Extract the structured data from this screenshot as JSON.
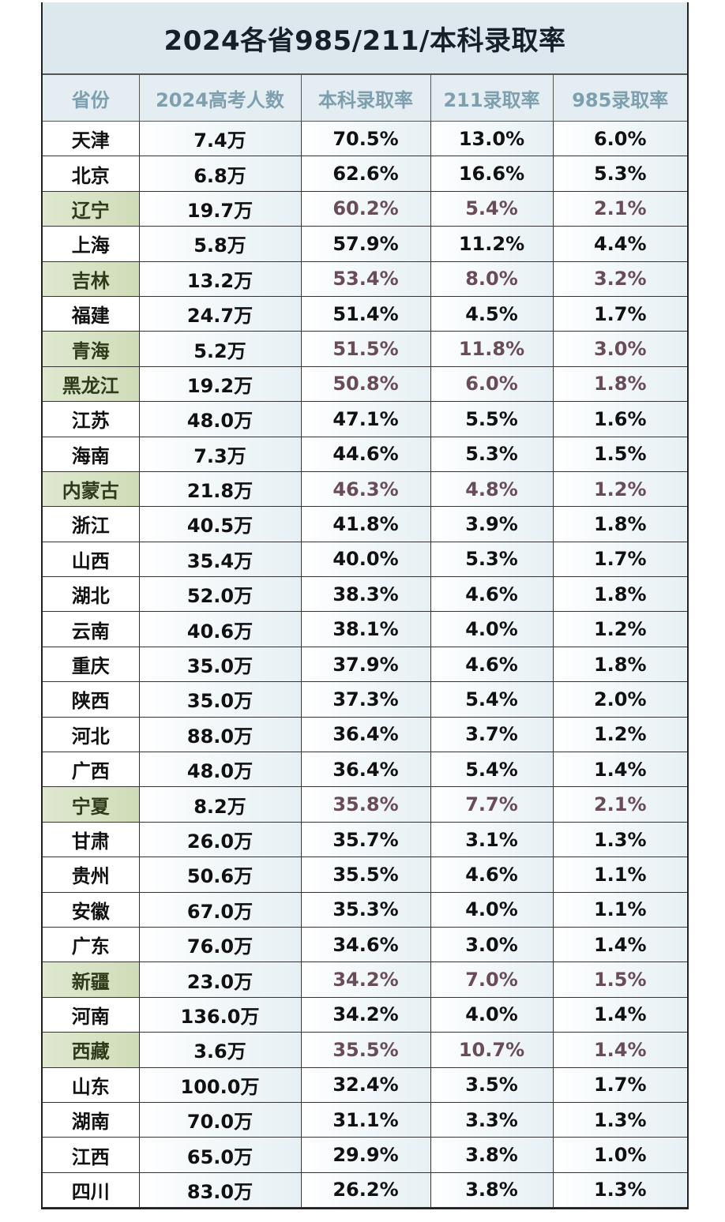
{
  "title": "2024各省985/211/本科录取率",
  "table": {
    "headers": [
      "省份",
      "2024高考人数",
      "本科录取率",
      "211录取率",
      "985录取率"
    ],
    "rows": [
      {
        "province": "天津",
        "examinees": "7.4万",
        "undergrad": "70.5%",
        "r211": "13.0%",
        "r985": "6.0%",
        "highlight": false
      },
      {
        "province": "北京",
        "examinees": "6.8万",
        "undergrad": "62.6%",
        "r211": "16.6%",
        "r985": "5.3%",
        "highlight": false
      },
      {
        "province": "辽宁",
        "examinees": "19.7万",
        "undergrad": "60.2%",
        "r211": "5.4%",
        "r985": "2.1%",
        "highlight": true
      },
      {
        "province": "上海",
        "examinees": "5.8万",
        "undergrad": "57.9%",
        "r211": "11.2%",
        "r985": "4.4%",
        "highlight": false
      },
      {
        "province": "吉林",
        "examinees": "13.2万",
        "undergrad": "53.4%",
        "r211": "8.0%",
        "r985": "3.2%",
        "highlight": true
      },
      {
        "province": "福建",
        "examinees": "24.7万",
        "undergrad": "51.4%",
        "r211": "4.5%",
        "r985": "1.7%",
        "highlight": false
      },
      {
        "province": "青海",
        "examinees": "5.2万",
        "undergrad": "51.5%",
        "r211": "11.8%",
        "r985": "3.0%",
        "highlight": true
      },
      {
        "province": "黑龙江",
        "examinees": "19.2万",
        "undergrad": "50.8%",
        "r211": "6.0%",
        "r985": "1.8%",
        "highlight": true
      },
      {
        "province": "江苏",
        "examinees": "48.0万",
        "undergrad": "47.1%",
        "r211": "5.5%",
        "r985": "1.6%",
        "highlight": false
      },
      {
        "province": "海南",
        "examinees": "7.3万",
        "undergrad": "44.6%",
        "r211": "5.3%",
        "r985": "1.5%",
        "highlight": false
      },
      {
        "province": "内蒙古",
        "examinees": "21.8万",
        "undergrad": "46.3%",
        "r211": "4.8%",
        "r985": "1.2%",
        "highlight": true
      },
      {
        "province": "浙江",
        "examinees": "40.5万",
        "undergrad": "41.8%",
        "r211": "3.9%",
        "r985": "1.8%",
        "highlight": false
      },
      {
        "province": "山西",
        "examinees": "35.4万",
        "undergrad": "40.0%",
        "r211": "5.3%",
        "r985": "1.7%",
        "highlight": false
      },
      {
        "province": "湖北",
        "examinees": "52.0万",
        "undergrad": "38.3%",
        "r211": "4.6%",
        "r985": "1.8%",
        "highlight": false
      },
      {
        "province": "云南",
        "examinees": "40.6万",
        "undergrad": "38.1%",
        "r211": "4.0%",
        "r985": "1.2%",
        "highlight": false
      },
      {
        "province": "重庆",
        "examinees": "35.0万",
        "undergrad": "37.9%",
        "r211": "4.6%",
        "r985": "1.8%",
        "highlight": false
      },
      {
        "province": "陕西",
        "examinees": "35.0万",
        "undergrad": "37.3%",
        "r211": "5.4%",
        "r985": "2.0%",
        "highlight": false
      },
      {
        "province": "河北",
        "examinees": "88.0万",
        "undergrad": "36.4%",
        "r211": "3.7%",
        "r985": "1.2%",
        "highlight": false
      },
      {
        "province": "广西",
        "examinees": "48.0万",
        "undergrad": "36.4%",
        "r211": "5.4%",
        "r985": "1.4%",
        "highlight": false
      },
      {
        "province": "宁夏",
        "examinees": "8.2万",
        "undergrad": "35.8%",
        "r211": "7.7%",
        "r985": "2.1%",
        "highlight": true
      },
      {
        "province": "甘肃",
        "examinees": "26.0万",
        "undergrad": "35.7%",
        "r211": "3.1%",
        "r985": "1.3%",
        "highlight": false
      },
      {
        "province": "贵州",
        "examinees": "50.6万",
        "undergrad": "35.5%",
        "r211": "4.6%",
        "r985": "1.1%",
        "highlight": false
      },
      {
        "province": "安徽",
        "examinees": "67.0万",
        "undergrad": "35.3%",
        "r211": "4.0%",
        "r985": "1.1%",
        "highlight": false
      },
      {
        "province": "广东",
        "examinees": "76.0万",
        "undergrad": "34.6%",
        "r211": "3.0%",
        "r985": "1.4%",
        "highlight": false
      },
      {
        "province": "新疆",
        "examinees": "23.0万",
        "undergrad": "34.2%",
        "r211": "7.0%",
        "r985": "1.5%",
        "highlight": true
      },
      {
        "province": "河南",
        "examinees": "136.0万",
        "undergrad": "34.2%",
        "r211": "4.0%",
        "r985": "1.4%",
        "highlight": false
      },
      {
        "province": "西藏",
        "examinees": "3.6万",
        "undergrad": "35.5%",
        "r211": "10.7%",
        "r985": "1.4%",
        "highlight": true
      },
      {
        "province": "山东",
        "examinees": "100.0万",
        "undergrad": "32.4%",
        "r211": "3.5%",
        "r985": "1.7%",
        "highlight": false
      },
      {
        "province": "湖南",
        "examinees": "70.0万",
        "undergrad": "31.1%",
        "r211": "3.3%",
        "r985": "1.3%",
        "highlight": false
      },
      {
        "province": "江西",
        "examinees": "65.0万",
        "undergrad": "29.9%",
        "r211": "3.8%",
        "r985": "1.0%",
        "highlight": false
      },
      {
        "province": "四川",
        "examinees": "83.0万",
        "undergrad": "26.2%",
        "r211": "3.8%",
        "r985": "1.3%",
        "highlight": false
      }
    ]
  }
}
